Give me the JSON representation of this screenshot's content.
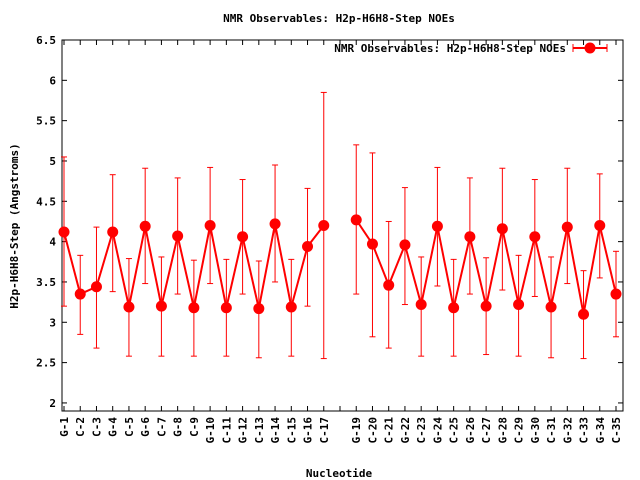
{
  "colors": {
    "series": "#ff0000",
    "axis": "#000000",
    "background": "#ffffff"
  },
  "chart_data": {
    "type": "line",
    "title": "NMR Observables: H2p-H6H8-Step NOEs",
    "xlabel": "Nucleotide",
    "ylabel": "H2p-H6H8-Step (Angstroms)",
    "ylim": [
      1.9,
      6.5
    ],
    "yticks": [
      2,
      2.5,
      3,
      3.5,
      4,
      4.5,
      5,
      5.5,
      6,
      6.5
    ],
    "ytick_labels": [
      "2",
      "2.5",
      "3",
      "3.5",
      "4",
      "4.5",
      "5",
      "5.5",
      "6",
      "6.5"
    ],
    "grid": false,
    "legend_position": "top-right",
    "categories": [
      "G-1",
      "C-2",
      "C-3",
      "G-4",
      "C-5",
      "G-6",
      "C-7",
      "G-8",
      "C-9",
      "G-10",
      "C-11",
      "G-12",
      "C-13",
      "G-14",
      "C-15",
      "G-16",
      "C-17",
      "",
      "G-19",
      "C-20",
      "C-21",
      "G-22",
      "C-23",
      "G-24",
      "C-25",
      "G-26",
      "C-27",
      "G-28",
      "C-29",
      "G-30",
      "C-31",
      "G-32",
      "C-33",
      "G-34",
      "C-35"
    ],
    "series": [
      {
        "name": "NMR Observables: H2p-H6H8-Step NOEs",
        "values": [
          4.12,
          3.35,
          3.44,
          4.12,
          3.19,
          4.19,
          3.2,
          4.07,
          3.18,
          4.2,
          3.18,
          4.06,
          3.17,
          4.22,
          3.19,
          3.94,
          4.2,
          null,
          4.27,
          3.97,
          3.46,
          3.96,
          3.22,
          4.19,
          3.18,
          4.06,
          3.2,
          4.16,
          3.22,
          4.06,
          3.19,
          4.18,
          3.1,
          4.2,
          3.35
        ],
        "err_low": [
          3.2,
          2.85,
          2.68,
          3.38,
          2.58,
          3.48,
          2.58,
          3.35,
          2.58,
          3.48,
          2.58,
          3.35,
          2.56,
          3.5,
          2.58,
          3.2,
          2.55,
          null,
          3.35,
          2.82,
          2.68,
          3.22,
          2.58,
          3.45,
          2.58,
          3.35,
          2.6,
          3.4,
          2.58,
          3.32,
          2.56,
          3.48,
          2.55,
          3.55,
          2.82
        ],
        "err_high": [
          5.05,
          3.83,
          4.18,
          4.83,
          3.79,
          4.91,
          3.81,
          4.79,
          3.77,
          4.92,
          3.78,
          4.77,
          3.76,
          4.95,
          3.78,
          4.66,
          5.85,
          null,
          5.2,
          5.1,
          4.25,
          4.67,
          3.81,
          4.92,
          3.78,
          4.79,
          3.8,
          4.91,
          3.83,
          4.77,
          3.81,
          4.91,
          3.64,
          4.84,
          3.88
        ]
      }
    ]
  }
}
